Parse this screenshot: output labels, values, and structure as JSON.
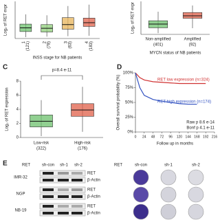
{
  "chart_data": [
    {
      "type": "box",
      "ylabel": "Log₂ of RET expr",
      "xlabel": "INSS stage for NB patients",
      "categories": [
        "1",
        "2",
        "3",
        "4"
      ],
      "counts": [
        "(121)",
        "(78)",
        "(63)",
        "(183)"
      ],
      "rotate_labels": true,
      "colors": [
        "#6cc06c",
        "#8fcf7a",
        "#e8b45a",
        "#e0604a"
      ],
      "ylim": [
        0,
        8
      ],
      "boxes": [
        {
          "low": 0.3,
          "q1": 1.5,
          "median": 2.3,
          "q3": 3.1,
          "high": 5.2
        },
        {
          "low": 0.4,
          "q1": 1.4,
          "median": 2.2,
          "q3": 3.0,
          "high": 5.0
        },
        {
          "low": 0.5,
          "q1": 2.0,
          "median": 3.0,
          "q3": 4.5,
          "high": 7.0
        },
        {
          "low": 0.6,
          "q1": 2.6,
          "median": 3.4,
          "q3": 4.4,
          "high": 7.3
        }
      ]
    },
    {
      "type": "box",
      "ylabel": "Log₂ of RET expr",
      "xlabel": "MYCN status of NB patients",
      "categories": [
        "Non-amplified",
        "Amplified"
      ],
      "counts": [
        "(401)",
        "(92)"
      ],
      "colors": [
        "#6cc06c",
        "#e0604a"
      ],
      "ylim": [
        0,
        8
      ],
      "boxes": [
        {
          "low": 0.3,
          "q1": 1.6,
          "median": 2.5,
          "q3": 3.3,
          "high": 5.5
        },
        {
          "low": 1.5,
          "q1": 3.9,
          "median": 4.5,
          "q3": 5.3,
          "high": 7.0
        }
      ]
    },
    {
      "type": "box",
      "panel_label": "C",
      "annotation": "p=8.4 e-11",
      "ylabel": "Log₂ of RET expression",
      "categories": [
        "Low-risk",
        "High-risk"
      ],
      "counts": [
        "(322)",
        "(176)"
      ],
      "colors": [
        "#6cc06c",
        "#e0604a"
      ],
      "ylim": [
        0,
        8
      ],
      "yticks": [
        0,
        2,
        4,
        6,
        8
      ],
      "boxes": [
        {
          "low": 0.2,
          "q1": 1.5,
          "median": 2.3,
          "q3": 3.2,
          "high": 5.3
        },
        {
          "low": 0.8,
          "q1": 3.0,
          "median": 3.9,
          "q3": 4.8,
          "high": 7.2
        }
      ]
    },
    {
      "type": "line",
      "panel_label": "D",
      "ylabel": "Overall survival probability (%)",
      "xlabel": "Follow up in months",
      "xlim": [
        0,
        216
      ],
      "ylim": [
        0,
        100
      ],
      "xticks": [
        0,
        24,
        48,
        72,
        96,
        120,
        144,
        168,
        192,
        216
      ],
      "yticks": [
        {
          "value": 0,
          "label": "0%"
        },
        {
          "value": 25,
          "label": "25%"
        },
        {
          "value": 50,
          "label": "50%"
        },
        {
          "value": 75,
          "label": "75%"
        },
        {
          "value": 100,
          "label": "100%"
        }
      ],
      "x": [
        0,
        12,
        24,
        48,
        72,
        96,
        120,
        144,
        168,
        192
      ],
      "series": [
        {
          "name": "RET low expression (n=324)",
          "color": "#d03030",
          "values": [
            100,
            92,
            88,
            85,
            84,
            83,
            82,
            82,
            82,
            82
          ]
        },
        {
          "name": "RET high expression (n=174)",
          "color": "#3050c0",
          "values": [
            100,
            75,
            62,
            55,
            52,
            50,
            48,
            47,
            47,
            null
          ]
        }
      ],
      "annotations": [
        "Raw p 8.6 e-14",
        "Bonf p 4.1 e-11"
      ]
    }
  ],
  "panel_e": {
    "label": "E",
    "blot": {
      "header": [
        "RET",
        "sh-con",
        "sh-1",
        "sh-2"
      ],
      "rows": [
        "IMR-32",
        "NGP",
        "NB-19"
      ],
      "bands": [
        "RET",
        "β-Actin"
      ]
    },
    "colony": {
      "header": [
        "RET",
        "sh-con",
        "sh-1",
        "sh-2"
      ]
    }
  }
}
